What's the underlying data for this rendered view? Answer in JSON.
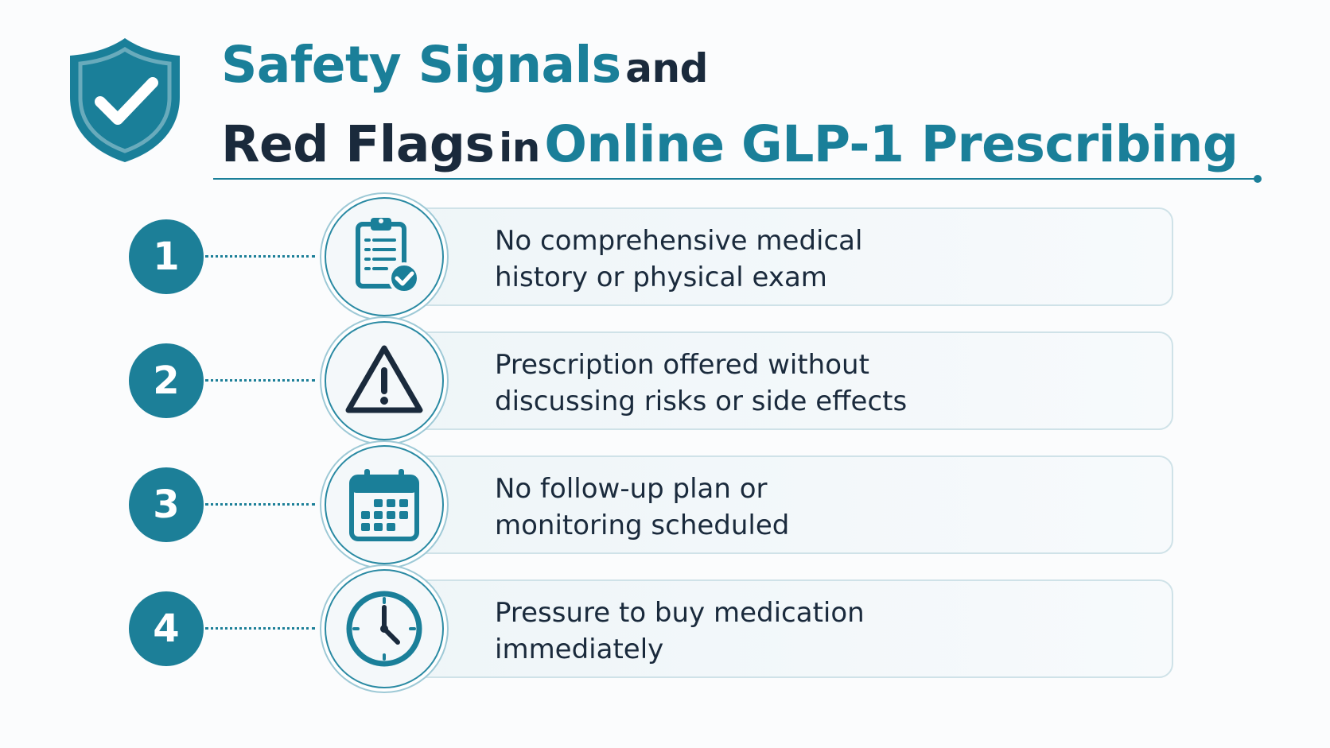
{
  "title": {
    "line1_teal": "Safety Signals",
    "line1_dark": "and",
    "line2_dark_a": "Red Flags",
    "line2_dark_b": "in",
    "line2_teal": "Online GLP-1 Prescribing"
  },
  "colors": {
    "accent": "#1a7f99",
    "text": "#1a2a3c",
    "card_border": "#cfe2e8"
  },
  "items": [
    {
      "number": "1",
      "icon": "clipboard-check-icon",
      "line1": "No comprehensive medical",
      "line2": "history or physical exam"
    },
    {
      "number": "2",
      "icon": "warning-triangle-icon",
      "line1": "Prescription offered without",
      "line2": "discussing risks or side effects"
    },
    {
      "number": "3",
      "icon": "calendar-icon",
      "line1": "No follow-up plan or",
      "line2": "monitoring scheduled"
    },
    {
      "number": "4",
      "icon": "clock-icon",
      "line1": "Pressure to buy medication",
      "line2": "immediately"
    }
  ]
}
